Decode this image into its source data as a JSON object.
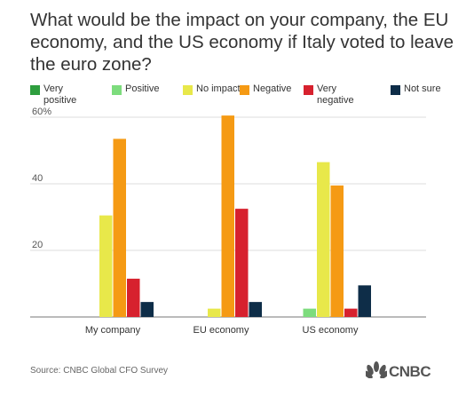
{
  "title": "What would be the impact on your company, the EU economy, and the US economy if Italy voted to leave the euro zone?",
  "source": "Source: CNBC Global CFO Survey",
  "logo_text": "CNBC",
  "chart_data": {
    "type": "bar",
    "categories": [
      "My company",
      "EU economy",
      "US economy"
    ],
    "series": [
      {
        "name": "Very positive",
        "color": "#2e9e3e",
        "values": [
          0,
          0,
          0
        ]
      },
      {
        "name": "Positive",
        "color": "#7ddc7d",
        "values": [
          0,
          0,
          2.5
        ]
      },
      {
        "name": "No impact",
        "color": "#e8e84a",
        "values": [
          30.5,
          2.5,
          46.5
        ]
      },
      {
        "name": "Negative",
        "color": "#f59a14",
        "values": [
          53.5,
          60.5,
          39.5
        ]
      },
      {
        "name": "Very negative",
        "color": "#d7212e",
        "values": [
          11.5,
          32.5,
          2.5
        ]
      },
      {
        "name": "Not sure",
        "color": "#0e2d48",
        "values": [
          4.5,
          4.5,
          9.5
        ]
      }
    ],
    "yticks": [
      20,
      40,
      60
    ],
    "ytick_labels": [
      "20",
      "40",
      "60%"
    ],
    "ylim": [
      0,
      60
    ],
    "grid": true,
    "legend": "top"
  }
}
